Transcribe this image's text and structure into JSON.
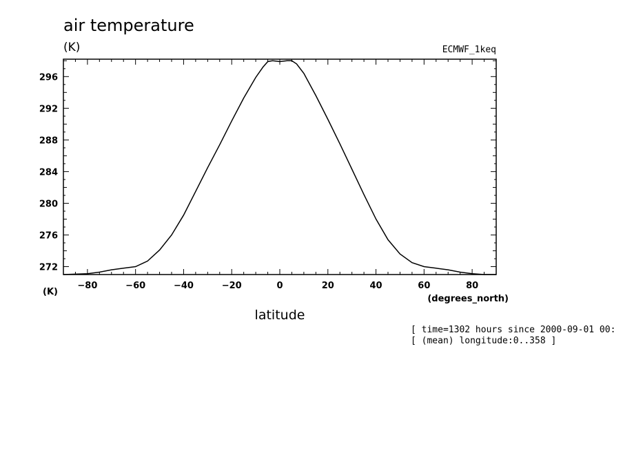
{
  "chart_data": {
    "type": "line",
    "title": "air temperature",
    "y_unit": "(K)",
    "dataset_label": "ECMWF_1keq",
    "xlabel": "latitude",
    "x_unit": "(degrees_north)",
    "y_unit_bottom": "(K)",
    "xlim": [
      -90,
      90
    ],
    "ylim": [
      271,
      298.2
    ],
    "x_ticks": [
      -80,
      -60,
      -40,
      -20,
      0,
      20,
      40,
      60,
      80
    ],
    "x_tick_labels": [
      "-80",
      "-60",
      "-40",
      "-20",
      "0",
      "20",
      "40",
      "60",
      "80"
    ],
    "y_ticks": [
      272,
      276,
      280,
      284,
      288,
      292,
      296
    ],
    "y_tick_labels": [
      "272",
      "276",
      "280",
      "284",
      "288",
      "292",
      "296"
    ],
    "grid": false,
    "series": [
      {
        "x": [
          -90,
          -85,
          -80,
          -75,
          -70,
          -65,
          -60,
          -55,
          -50,
          -45,
          -40,
          -35,
          -30,
          -25,
          -20,
          -15,
          -10,
          -7,
          -5,
          -3,
          0,
          3,
          5,
          7,
          10,
          15,
          20,
          25,
          30,
          35,
          40,
          45,
          50,
          55,
          60,
          65,
          70,
          75,
          80,
          85,
          90
        ],
        "y": [
          271.0,
          271.05,
          271.1,
          271.3,
          271.6,
          271.8,
          272.0,
          272.7,
          274.1,
          276.0,
          278.5,
          281.5,
          284.5,
          287.4,
          290.4,
          293.3,
          295.9,
          297.2,
          297.9,
          298.0,
          297.9,
          298.0,
          298.0,
          297.6,
          296.4,
          293.6,
          290.6,
          287.5,
          284.3,
          281.1,
          278.0,
          275.4,
          273.6,
          272.5,
          272.0,
          271.8,
          271.6,
          271.3,
          271.1,
          271.0,
          271.0
        ]
      }
    ]
  },
  "annotations": {
    "time": "[ time=1302 hours since 2000-09-01 00:",
    "longitude": "[ (mean) longitude:0..358 ]"
  }
}
